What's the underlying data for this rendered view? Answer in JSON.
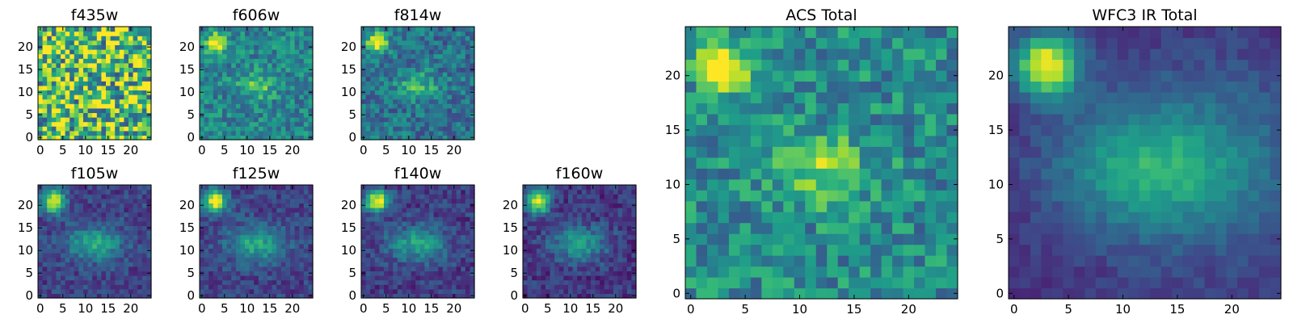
{
  "chart_data": [
    {
      "type": "heatmap",
      "title": "f435w",
      "colormap": "viridis",
      "grid_size": [
        25,
        25
      ],
      "xlim": [
        0,
        24
      ],
      "ylim": [
        0,
        24
      ],
      "xticks": [
        0,
        5,
        10,
        15,
        20
      ],
      "yticks": [
        0,
        5,
        10,
        15,
        20
      ],
      "background": 0.7,
      "noise": 0.45,
      "sources": []
    },
    {
      "type": "heatmap",
      "title": "f606w",
      "colormap": "viridis",
      "grid_size": [
        25,
        25
      ],
      "xlim": [
        0,
        24
      ],
      "ylim": [
        0,
        24
      ],
      "xticks": [
        0,
        5,
        10,
        15,
        20
      ],
      "yticks": [
        0,
        5,
        10,
        15,
        20
      ],
      "background": 0.45,
      "noise": 0.18,
      "sources": [
        {
          "x": 3,
          "y": 21,
          "amp": 0.7,
          "sx": 1.4,
          "sy": 1.4
        },
        {
          "x": 12,
          "y": 11.5,
          "amp": 0.3,
          "sx": 2.8,
          "sy": 2.0
        }
      ]
    },
    {
      "type": "heatmap",
      "title": "f814w",
      "colormap": "viridis",
      "grid_size": [
        25,
        25
      ],
      "xlim": [
        0,
        24
      ],
      "ylim": [
        0,
        24
      ],
      "xticks": [
        0,
        5,
        10,
        15,
        20
      ],
      "yticks": [
        0,
        5,
        10,
        15,
        20
      ],
      "background": 0.38,
      "noise": 0.18,
      "sources": [
        {
          "x": 3,
          "y": 21,
          "amp": 0.75,
          "sx": 1.5,
          "sy": 1.5
        },
        {
          "x": 12,
          "y": 11.5,
          "amp": 0.3,
          "sx": 3.0,
          "sy": 2.0
        }
      ]
    },
    {
      "type": "heatmap",
      "title": "f105w",
      "colormap": "viridis",
      "grid_size": [
        25,
        25
      ],
      "xlim": [
        0,
        24
      ],
      "ylim": [
        0,
        24
      ],
      "xticks": [
        0,
        5,
        10,
        15,
        20
      ],
      "yticks": [
        0,
        5,
        10,
        15,
        20
      ],
      "background": 0.2,
      "noise": 0.12,
      "sources": [
        {
          "x": 3,
          "y": 21,
          "amp": 0.8,
          "sx": 1.8,
          "sy": 1.8
        },
        {
          "x": 12,
          "y": 11.5,
          "amp": 0.38,
          "sx": 4.5,
          "sy": 2.8
        }
      ]
    },
    {
      "type": "heatmap",
      "title": "f125w",
      "colormap": "viridis",
      "grid_size": [
        25,
        25
      ],
      "xlim": [
        0,
        24
      ],
      "ylim": [
        0,
        24
      ],
      "xticks": [
        0,
        5,
        10,
        15,
        20
      ],
      "yticks": [
        0,
        5,
        10,
        15,
        20
      ],
      "background": 0.2,
      "noise": 0.12,
      "sources": [
        {
          "x": 3,
          "y": 21,
          "amp": 0.8,
          "sx": 1.8,
          "sy": 1.8
        },
        {
          "x": 12,
          "y": 11.5,
          "amp": 0.4,
          "sx": 4.5,
          "sy": 2.8
        }
      ]
    },
    {
      "type": "heatmap",
      "title": "f140w",
      "colormap": "viridis",
      "grid_size": [
        25,
        25
      ],
      "xlim": [
        0,
        24
      ],
      "ylim": [
        0,
        24
      ],
      "xticks": [
        0,
        5,
        10,
        15,
        20
      ],
      "yticks": [
        0,
        5,
        10,
        15,
        20
      ],
      "background": 0.18,
      "noise": 0.12,
      "sources": [
        {
          "x": 3,
          "y": 21,
          "amp": 0.82,
          "sx": 1.8,
          "sy": 1.8
        },
        {
          "x": 12,
          "y": 11.5,
          "amp": 0.4,
          "sx": 4.5,
          "sy": 2.8
        }
      ]
    },
    {
      "type": "heatmap",
      "title": "f160w",
      "colormap": "viridis",
      "grid_size": [
        25,
        25
      ],
      "xlim": [
        0,
        24
      ],
      "ylim": [
        0,
        24
      ],
      "xticks": [
        0,
        5,
        10,
        15,
        20
      ],
      "yticks": [
        0,
        5,
        10,
        15,
        20
      ],
      "background": 0.16,
      "noise": 0.12,
      "sources": [
        {
          "x": 3,
          "y": 21,
          "amp": 0.85,
          "sx": 1.8,
          "sy": 1.8
        },
        {
          "x": 12,
          "y": 11.5,
          "amp": 0.38,
          "sx": 4.5,
          "sy": 2.8
        }
      ]
    },
    {
      "type": "heatmap",
      "title": "ACS Total",
      "colormap": "viridis",
      "grid_size": [
        25,
        25
      ],
      "xlim": [
        0,
        24
      ],
      "ylim": [
        0,
        24
      ],
      "xticks": [
        0,
        5,
        10,
        15,
        20
      ],
      "yticks": [
        0,
        5,
        10,
        15,
        20
      ],
      "background": 0.48,
      "noise": 0.2,
      "sources": [
        {
          "x": 3,
          "y": 21,
          "amp": 0.6,
          "sx": 1.6,
          "sy": 1.6
        },
        {
          "x": 12,
          "y": 11.5,
          "amp": 0.35,
          "sx": 3.0,
          "sy": 2.2
        }
      ]
    },
    {
      "type": "heatmap",
      "title": "WFC3 IR Total",
      "colormap": "viridis",
      "grid_size": [
        25,
        25
      ],
      "xlim": [
        0,
        24
      ],
      "ylim": [
        0,
        24
      ],
      "xticks": [
        0,
        5,
        10,
        15,
        20
      ],
      "yticks": [
        0,
        5,
        10,
        15,
        20
      ],
      "background": 0.14,
      "noise": 0.06,
      "sources": [
        {
          "x": 3,
          "y": 21,
          "amp": 0.86,
          "sx": 2.0,
          "sy": 2.0
        },
        {
          "x": 12,
          "y": 11.5,
          "amp": 0.36,
          "sx": 6.0,
          "sy": 4.0
        },
        {
          "x": 18,
          "y": 12,
          "amp": 0.2,
          "sx": 8.0,
          "sy": 7.0
        }
      ]
    }
  ]
}
